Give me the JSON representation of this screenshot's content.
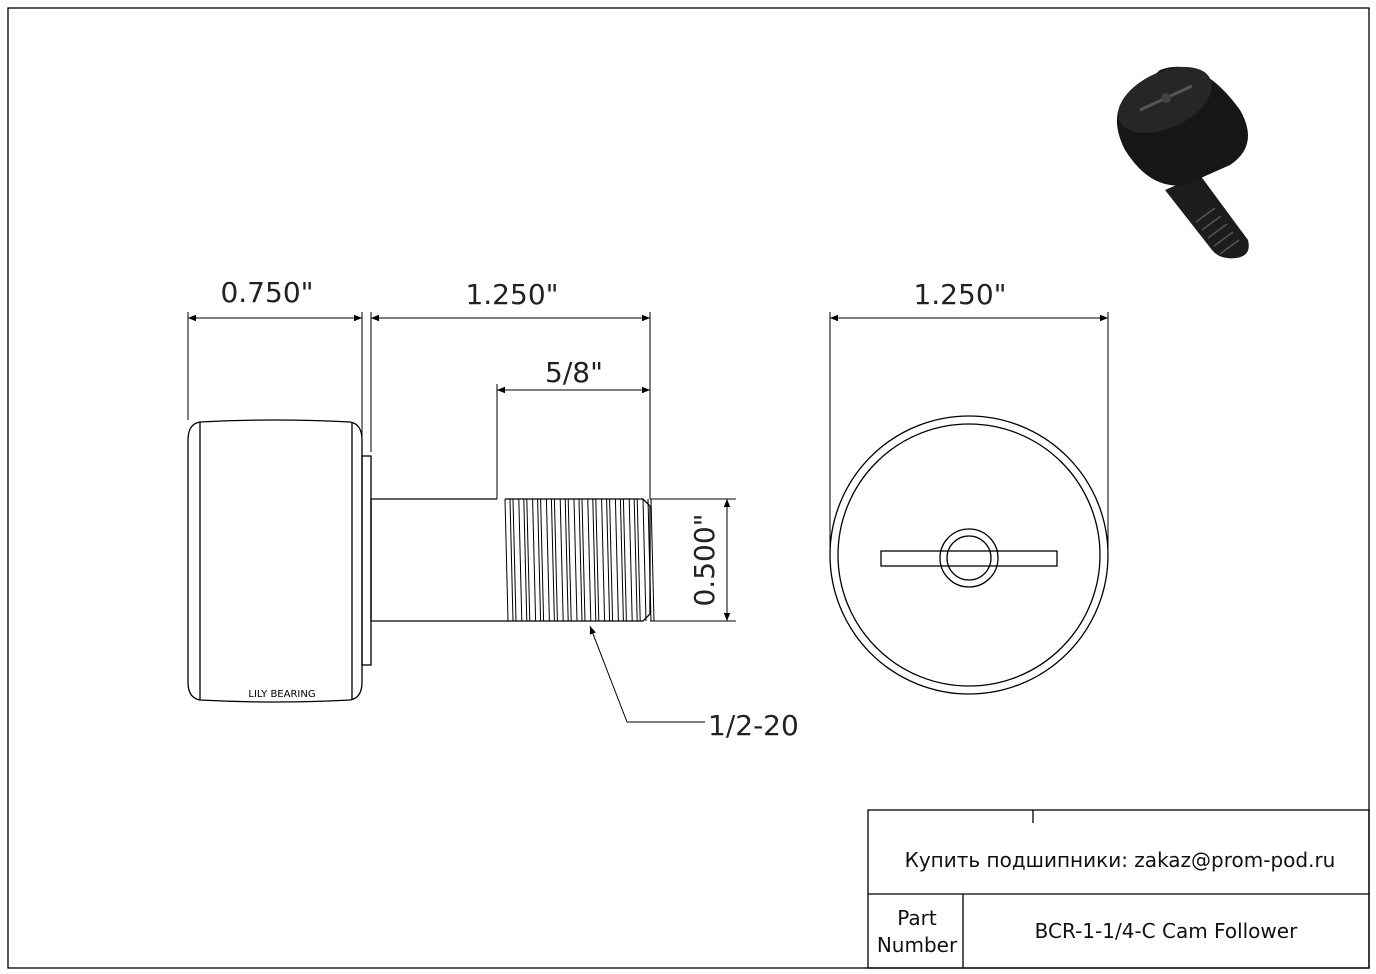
{
  "dimensions": {
    "roller_width": "0.750\"",
    "stud_length": "1.250\"",
    "thread_length": "5/8\"",
    "stud_diameter": "0.500\"",
    "thread_spec": "1/2-20",
    "roller_diameter": "1.250\""
  },
  "roller_marking": "LILY BEARING",
  "title_block": {
    "contact": "Купить подшипники: zakaz@prom-pod.ru",
    "part_label_line1": "Part",
    "part_label_line2": "Number",
    "part_number": "BCR-1-1/4-C Cam Follower"
  },
  "colors": {
    "line": "#000000",
    "render": "#1a1a1a"
  }
}
